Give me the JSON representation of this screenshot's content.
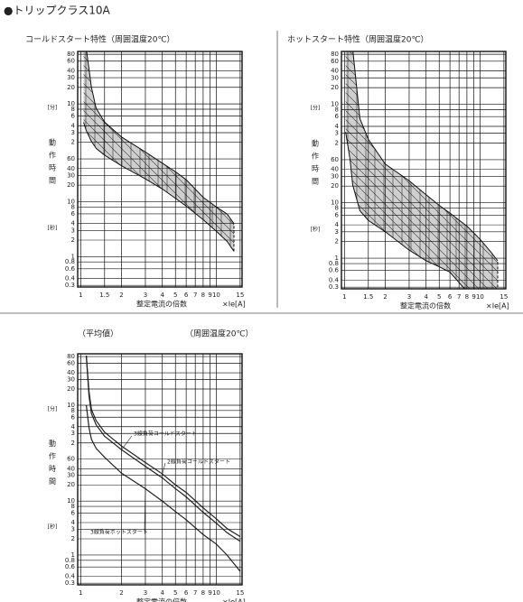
{
  "page_title": "●トリップクラス10A",
  "chart_data": [
    {
      "type": "band",
      "title": "コールドスタート特性（周囲温度20℃）",
      "y_label": "動作時間",
      "y_unit_minutes": "[分]",
      "y_unit_seconds": "[秒]",
      "x_label": "整定電流の倍数",
      "x_unit": "×Ie[A]",
      "log_x": true,
      "log_y": true,
      "grid": true,
      "xlim": [
        0.95,
        15.5
      ],
      "ylim": [
        0.28,
        5400
      ],
      "xticks": [
        1,
        1.5,
        2,
        3,
        4,
        5,
        6,
        7,
        8,
        9,
        10,
        15
      ],
      "yticks": [
        {
          "value": 4800,
          "label": "80"
        },
        {
          "value": 3600,
          "label": "60"
        },
        {
          "value": 2400,
          "label": "40"
        },
        {
          "value": 1800,
          "label": "30"
        },
        {
          "value": 1200,
          "label": "20"
        },
        {
          "value": 600,
          "label": "10"
        },
        {
          "value": 480,
          "label": "8"
        },
        {
          "value": 360,
          "label": "6"
        },
        {
          "value": 240,
          "label": "4"
        },
        {
          "value": 180,
          "label": "3"
        },
        {
          "value": 120,
          "label": "2"
        },
        60,
        40,
        30,
        20,
        10,
        8,
        6,
        4,
        3,
        2,
        1,
        0.8,
        0.6,
        0.4,
        0.3
      ],
      "color": "#cfcfcf",
      "hatch": true,
      "x": [
        1.05,
        1.1,
        1.2,
        1.3,
        1.5,
        2,
        3,
        4,
        5,
        6,
        8,
        10,
        12,
        13.5
      ],
      "low": [
        278,
        195,
        125,
        93,
        70,
        45,
        26,
        17,
        11.5,
        8.3,
        4.7,
        2.9,
        1.9,
        1.25
      ],
      "high": [
        6000,
        6000,
        1200,
        500,
        280,
        150,
        80,
        50,
        35,
        25,
        12,
        8,
        6,
        4
      ]
    },
    {
      "type": "band",
      "title": "ホットスタート特性（周囲温度20℃）",
      "y_label": "動作時間",
      "y_unit_minutes": "[分]",
      "y_unit_seconds": "[秒]",
      "x_label": "整定電流の倍数",
      "x_unit": "×Ie[A]",
      "log_x": true,
      "log_y": true,
      "grid": true,
      "xlim": [
        0.95,
        15.5
      ],
      "ylim": [
        0.28,
        5400
      ],
      "xticks": [
        1,
        1.5,
        2,
        3,
        4,
        5,
        6,
        7,
        8,
        9,
        10,
        15
      ],
      "yticks": [
        {
          "value": 4800,
          "label": "80"
        },
        {
          "value": 3600,
          "label": "60"
        },
        {
          "value": 2400,
          "label": "40"
        },
        {
          "value": 1800,
          "label": "30"
        },
        {
          "value": 1200,
          "label": "20"
        },
        {
          "value": 600,
          "label": "10"
        },
        {
          "value": 480,
          "label": "8"
        },
        {
          "value": 360,
          "label": "6"
        },
        {
          "value": 240,
          "label": "4"
        },
        {
          "value": 180,
          "label": "3"
        },
        {
          "value": 120,
          "label": "2"
        },
        60,
        40,
        30,
        20,
        10,
        8,
        6,
        4,
        3,
        2,
        1,
        0.8,
        0.6,
        0.4,
        0.3
      ],
      "color": "#cfcfcf",
      "hatch": true,
      "x": [
        1.02,
        1.1,
        1.15,
        1.3,
        1.5,
        2,
        3,
        4,
        5,
        6,
        8,
        10,
        12,
        13.5
      ],
      "low": [
        190,
        60,
        21,
        7.2,
        4.8,
        3,
        1.4,
        0.9,
        0.7,
        0.56,
        0.25,
        0.15,
        0.1,
        0.08
      ],
      "high": [
        6000,
        6000,
        6000,
        330,
        140,
        50,
        25,
        14,
        9,
        6.5,
        3.8,
        2.2,
        1.3,
        0.9
      ]
    },
    {
      "type": "line",
      "note_left": "（平均値）",
      "note_right": "（周囲温度20℃）",
      "y_label": "動作時間",
      "y_unit_minutes": "[分]",
      "y_unit_seconds": "[秒]",
      "x_label": "整定電流の倍数",
      "x_unit": "×Ie[A]",
      "log_x": true,
      "log_y": true,
      "grid": true,
      "xlim": [
        0.95,
        15.5
      ],
      "ylim": [
        0.28,
        5400
      ],
      "xticks": [
        1,
        2,
        3,
        4,
        5,
        6,
        7,
        8,
        9,
        10,
        15
      ],
      "yticks": [
        {
          "value": 4800,
          "label": "80"
        },
        {
          "value": 3600,
          "label": "60"
        },
        {
          "value": 2400,
          "label": "40"
        },
        {
          "value": 1800,
          "label": "30"
        },
        {
          "value": 1200,
          "label": "20"
        },
        {
          "value": 600,
          "label": "10"
        },
        {
          "value": 480,
          "label": "8"
        },
        {
          "value": 360,
          "label": "6"
        },
        {
          "value": 240,
          "label": "4"
        },
        {
          "value": 180,
          "label": "3"
        },
        {
          "value": 120,
          "label": "2"
        },
        60,
        40,
        30,
        20,
        10,
        8,
        6,
        4,
        3,
        2,
        1,
        0.8,
        0.6,
        0.4,
        0.3
      ],
      "x": [
        1.1,
        1.15,
        1.2,
        1.3,
        1.5,
        2,
        3,
        4,
        5,
        6,
        8,
        10,
        12,
        15
      ],
      "series": [
        {
          "name": "3線負荷コールドスタート",
          "color": "#222222",
          "values": [
            5000,
            920,
            420,
            260,
            160,
            90,
            44,
            27,
            17,
            12,
            6.2,
            3.9,
            2.6,
            1.8
          ]
        },
        {
          "name": "2線負荷コールドスタート",
          "color": "#222222",
          "values": [
            5000,
            1100,
            500,
            310,
            190,
            105,
            52,
            32,
            20,
            14.5,
            7.5,
            4.7,
            3.1,
            2.2
          ]
        },
        {
          "name": "3線負荷ホットスタート",
          "color": "#222222",
          "values": [
            600,
            235,
            140,
            95,
            65,
            33,
            17,
            10,
            6.4,
            4.5,
            2.4,
            1.6,
            1.0,
            0.5
          ]
        }
      ]
    }
  ]
}
